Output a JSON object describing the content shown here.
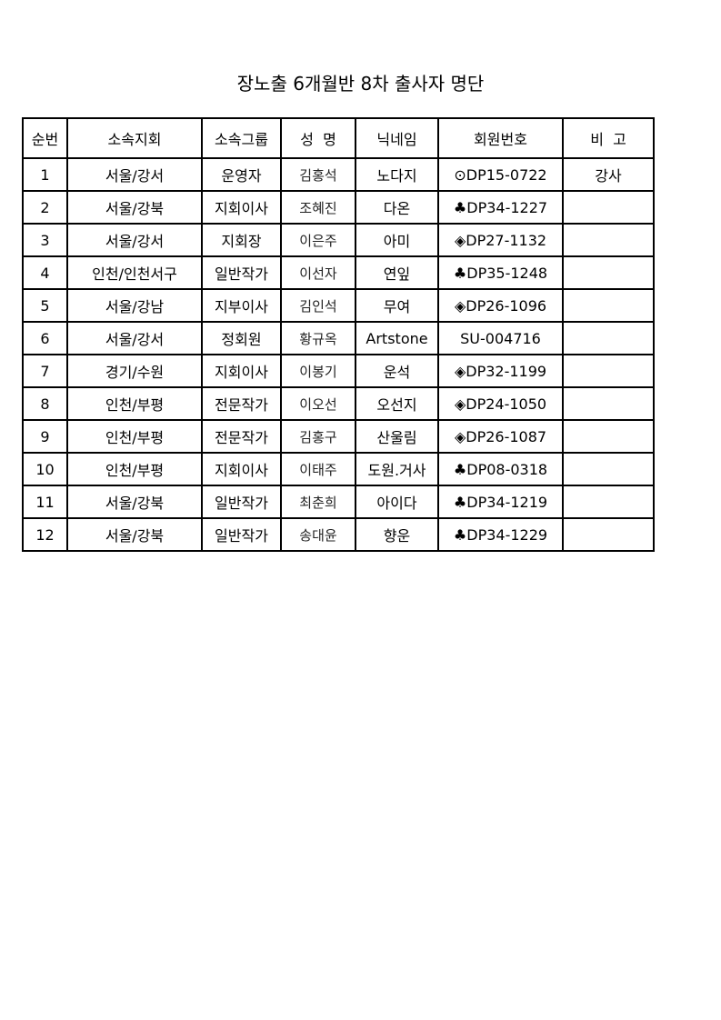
{
  "title": "장노출 6개월반 8차 출사자 명단",
  "headers": [
    "순번",
    "소속지회",
    "소속그룹",
    "성  명",
    "닉네임",
    "회원번호",
    "비  고"
  ],
  "rows": [
    [
      "1",
      "서울/강서",
      "운영자",
      "김홍석",
      "노다지",
      "⊙DP15-0722",
      "강사"
    ],
    [
      "2",
      "서울/강북",
      "지회이사",
      "조혜진",
      "다온",
      "♣DP34-1227",
      ""
    ],
    [
      "3",
      "서울/강서",
      "지회장",
      "이은주",
      "아미",
      "◈DP27-1132",
      ""
    ],
    [
      "4",
      "인천/인천서구",
      "일반작가",
      "이선자",
      "연잎",
      "♣DP35-1248",
      ""
    ],
    [
      "5",
      "서울/강남",
      "지부이사",
      "김인석",
      "무여",
      "◈DP26-1096",
      ""
    ],
    [
      "6",
      "서울/강서",
      "정회원",
      "황규옥",
      "Artstone",
      "SU-004716",
      ""
    ],
    [
      "7",
      "경기/수원",
      "지회이사",
      "이봉기",
      "운석",
      "◈DP32-1199",
      ""
    ],
    [
      "8",
      "인천/부평",
      "전문작가",
      "이오선",
      "오선지",
      "◈DP24-1050",
      ""
    ],
    [
      "9",
      "인천/부평",
      "전문작가",
      "김홍구",
      "산울림",
      "◈DP26-1087",
      ""
    ],
    [
      "10",
      "인천/부평",
      "지회이사",
      "이태주",
      "도원.거사",
      "♣DP08-0318",
      ""
    ],
    [
      "11",
      "서울/강북",
      "일반작가",
      "최춘희",
      "아이다",
      "♣DP34-1219",
      ""
    ],
    [
      "12",
      "서울/강북",
      "일반작가",
      "송대윤",
      "향운",
      "♣DP34-1229",
      ""
    ]
  ]
}
